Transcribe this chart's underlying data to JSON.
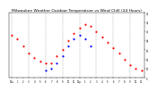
{
  "title": "Milwaukee Weather Outdoor Temperature vs Wind Chill (24 Hours)",
  "title_fontsize": 3.2,
  "background_color": "#ffffff",
  "plot_bg_color": "#ffffff",
  "grid_color": "#aaaaaa",
  "x_labels": [
    "12a",
    "1",
    "2",
    "3",
    "4",
    "5",
    "6",
    "7",
    "8",
    "9",
    "10",
    "11",
    "12p",
    "1",
    "2",
    "3",
    "4",
    "5",
    "6",
    "7",
    "8",
    "9",
    "10",
    "11",
    "12a"
  ],
  "ylim": [
    5,
    40
  ],
  "y_ticks": [
    5,
    10,
    15,
    20,
    25,
    30,
    35,
    40
  ],
  "y_tick_labels": [
    "5",
    "10",
    "15",
    "20",
    "25",
    "30",
    "35",
    "40"
  ],
  "temp_x": [
    0,
    1,
    2,
    3,
    4,
    5,
    6,
    7,
    8,
    9,
    10,
    11,
    12,
    13,
    14,
    15,
    16,
    17,
    18,
    19,
    20,
    21,
    22,
    23
  ],
  "temp_y": [
    28,
    26,
    22,
    18,
    16,
    14,
    13,
    13,
    17,
    20,
    25,
    29,
    32,
    34,
    33,
    30,
    27,
    24,
    21,
    18,
    15,
    12,
    10,
    9
  ],
  "wind_x": [
    6,
    7,
    8,
    9,
    10,
    11,
    12,
    13,
    14
  ],
  "wind_y": [
    9,
    10,
    13,
    17,
    22,
    26,
    28,
    26,
    22
  ],
  "temp_color": "#ff0000",
  "wind_color": "#0000ff",
  "dot_size": 2.5,
  "vline_x": [
    0,
    3,
    6,
    9,
    12,
    15,
    18,
    21,
    24
  ]
}
